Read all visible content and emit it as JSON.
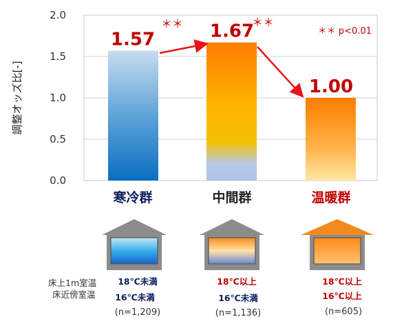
{
  "chart_data": {
    "type": "bar",
    "ylabel": "調整オッズ比[-]",
    "ylim": [
      0,
      2.0
    ],
    "yticks": [
      "0.0",
      "0.5",
      "1.0",
      "1.5",
      "2.0"
    ],
    "grid": true,
    "categories": [
      "寒冷群",
      "中間群",
      "温暖群"
    ],
    "values": [
      1.57,
      1.67,
      1.0
    ],
    "value_labels": [
      "1.57",
      "1.67",
      "1.00"
    ],
    "significance_marks": [
      "＊＊",
      "＊＊",
      ""
    ],
    "significance_note": "＊＊ p<0.01",
    "category_colors": [
      "#0b1f5c",
      "#222222",
      "#c00000"
    ]
  },
  "houses": {
    "row_label_1": "床上1m室温",
    "row_label_2": "床近傍室温",
    "groups": [
      {
        "upper_temp": "18℃未満",
        "lower_temp": "16℃未満",
        "count": "(n=1,209)",
        "upper_color": "#0b1f5c",
        "lower_color": "#0b1f5c"
      },
      {
        "upper_temp": "18℃以上",
        "lower_temp": "16℃未満",
        "count": "(n=1,136)",
        "upper_color": "#c00000",
        "lower_color": "#0b1f5c"
      },
      {
        "upper_temp": "18℃以上",
        "lower_temp": "16℃以上",
        "count": "(n=605)",
        "upper_color": "#c00000",
        "lower_color": "#c00000"
      }
    ]
  }
}
